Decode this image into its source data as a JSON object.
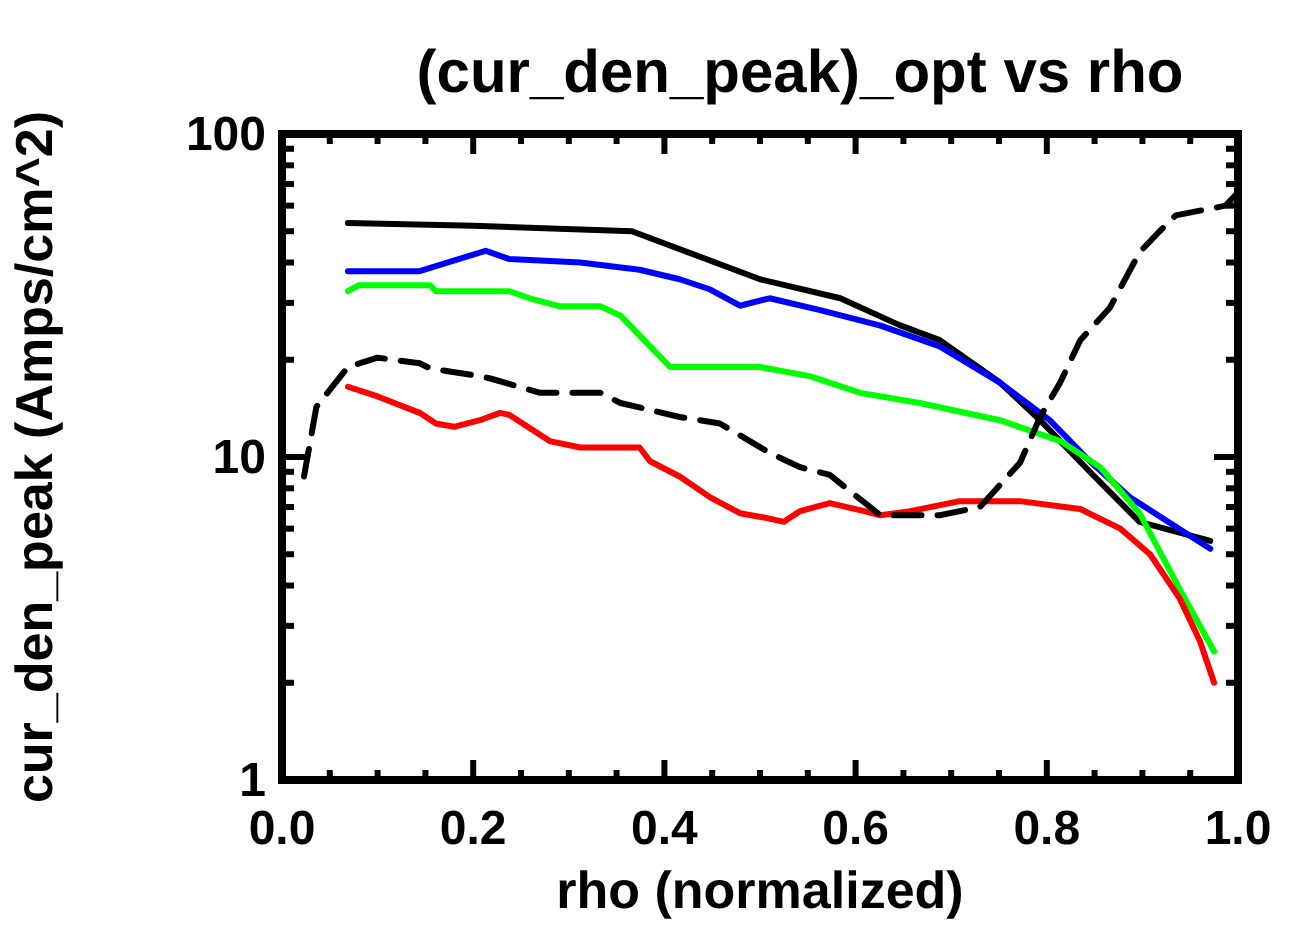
{
  "chart_data": {
    "type": "line",
    "title": "(cur_den_peak)_opt vs rho",
    "xlabel": "rho (normalized)",
    "ylabel": "cur_den_peak (Amps/cm^2)",
    "log": "y",
    "grid": false,
    "xlim": [
      0,
      1
    ],
    "xticks": [
      {
        "value": 0,
        "label": "0.0"
      },
      {
        "value": 0.05,
        "label": null
      },
      {
        "value": 0.1,
        "label": null
      },
      {
        "value": 0.15,
        "label": null
      },
      {
        "value": 0.2,
        "label": "0.2"
      },
      {
        "value": 0.25,
        "label": null
      },
      {
        "value": 0.3,
        "label": null
      },
      {
        "value": 0.35,
        "label": null
      },
      {
        "value": 0.4,
        "label": "0.4"
      },
      {
        "value": 0.45,
        "label": null
      },
      {
        "value": 0.5,
        "label": null
      },
      {
        "value": 0.55,
        "label": null
      },
      {
        "value": 0.6,
        "label": "0.6"
      },
      {
        "value": 0.65,
        "label": null
      },
      {
        "value": 0.7,
        "label": null
      },
      {
        "value": 0.75,
        "label": null
      },
      {
        "value": 0.8,
        "label": "0.8"
      },
      {
        "value": 0.85,
        "label": null
      },
      {
        "value": 0.9,
        "label": null
      },
      {
        "value": 0.95,
        "label": null
      },
      {
        "value": 1,
        "label": "1.0"
      }
    ],
    "ylim": [
      1,
      100
    ],
    "yticks": [
      1,
      {
        "value": 2,
        "label": null
      },
      {
        "value": 3,
        "label": null
      },
      {
        "value": 4,
        "label": null
      },
      {
        "value": 5,
        "label": null
      },
      {
        "value": 6,
        "label": null
      },
      {
        "value": 7,
        "label": null
      },
      {
        "value": 8,
        "label": null
      },
      {
        "value": 9,
        "label": null
      },
      10,
      {
        "value": 20,
        "label": null
      },
      {
        "value": 30,
        "label": null
      },
      {
        "value": 40,
        "label": null
      },
      {
        "value": 50,
        "label": null
      },
      {
        "value": 60,
        "label": null
      },
      {
        "value": 70,
        "label": null
      },
      {
        "value": 80,
        "label": null
      },
      {
        "value": 90,
        "label": null
      },
      100
    ],
    "series": [
      {
        "color": "#000000",
        "line_style": "solid",
        "x": [
          0.069,
          0.2,
          0.366,
          0.5,
          0.584,
          0.646,
          0.688,
          0.751,
          0.793,
          0.845,
          0.897,
          0.971
        ],
        "values": [
          53,
          52,
          50,
          35.5,
          31,
          25.6,
          23,
          17,
          13,
          9,
          6.3,
          5.5
        ]
      },
      {
        "color": "#0000ff",
        "line_style": "solid",
        "x": [
          0.069,
          0.144,
          0.213,
          0.238,
          0.312,
          0.374,
          0.416,
          0.448,
          0.479,
          0.51,
          0.563,
          0.626,
          0.688,
          0.751,
          0.803,
          0.845,
          0.887,
          0.971
        ],
        "values": [
          37.6,
          37.6,
          43.5,
          41,
          40,
          38,
          35.5,
          33,
          29.4,
          31,
          28.5,
          25.5,
          22,
          17,
          13,
          9.7,
          7.5,
          5.2
        ]
      },
      {
        "color": "#00ff00",
        "line_style": "solid",
        "x": [
          0.069,
          0.08,
          0.155,
          0.161,
          0.238,
          0.259,
          0.29,
          0.333,
          0.354,
          0.406,
          0.5,
          0.552,
          0.605,
          0.667,
          0.751,
          0.814,
          0.856,
          0.897,
          0.939,
          0.975
        ],
        "values": [
          32.6,
          34,
          34,
          32.6,
          32.6,
          31,
          29.3,
          29.3,
          27.4,
          19,
          19,
          17.8,
          15.8,
          14.7,
          13,
          11.2,
          9.3,
          6.7,
          3.9,
          2.5
        ]
      },
      {
        "color": "#ff0000",
        "line_style": "solid",
        "x": [
          0.069,
          0.1,
          0.144,
          0.161,
          0.18,
          0.207,
          0.228,
          0.238,
          0.259,
          0.28,
          0.312,
          0.374,
          0.385,
          0.416,
          0.448,
          0.479,
          0.504,
          0.525,
          0.542,
          0.573,
          0.609,
          0.626,
          0.657,
          0.709,
          0.772,
          0.835,
          0.877,
          0.908,
          0.939,
          0.96,
          0.975
        ],
        "values": [
          16.5,
          15.4,
          13.7,
          12.7,
          12.4,
          13,
          13.7,
          13.5,
          12.3,
          11.2,
          10.7,
          10.7,
          9.7,
          8.7,
          7.5,
          6.7,
          6.5,
          6.3,
          6.8,
          7.2,
          6.8,
          6.6,
          6.8,
          7.3,
          7.3,
          6.9,
          6,
          5,
          3.65,
          2.7,
          2
        ]
      },
      {
        "color": "#000000",
        "line_style": "dashed",
        "x": [
          0.023,
          0.036,
          0.069,
          0.1,
          0.144,
          0.155,
          0.207,
          0.218,
          0.27,
          0.333,
          0.354,
          0.416,
          0.458,
          0.51,
          0.542,
          0.573,
          0.626,
          0.688,
          0.73,
          0.772,
          0.793,
          0.814,
          0.835,
          0.866,
          0.897,
          0.918,
          0.935,
          0.987,
          0.998
        ],
        "values": [
          8.7,
          14.3,
          19,
          20.3,
          19.5,
          18.8,
          17.8,
          17.5,
          15.8,
          15.8,
          14.7,
          13.3,
          12.7,
          10.3,
          9.3,
          8.8,
          6.6,
          6.6,
          7,
          9.6,
          13.3,
          17,
          23,
          29,
          43,
          50,
          56,
          60,
          65
        ]
      }
    ]
  }
}
